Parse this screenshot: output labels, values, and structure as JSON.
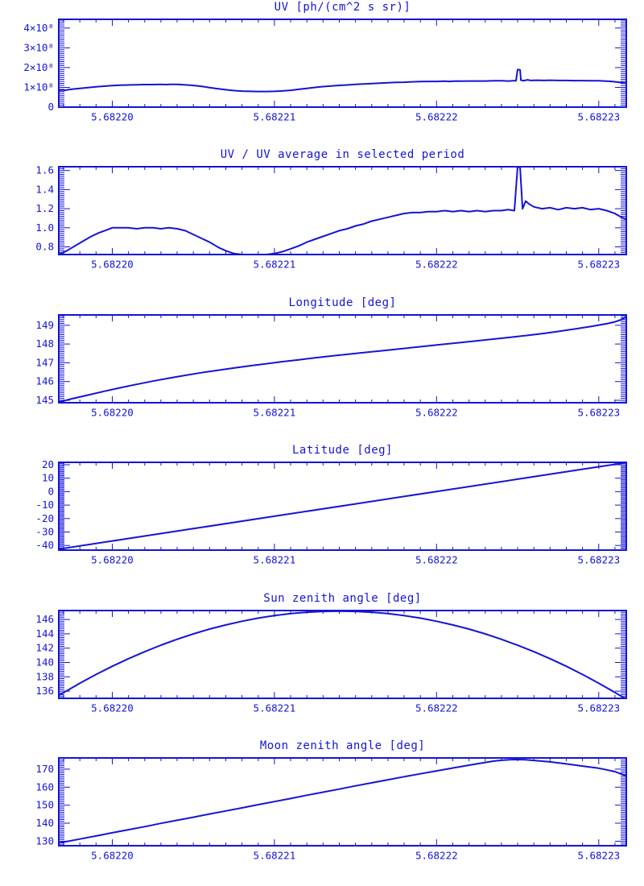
{
  "page": {
    "background": "#ffffff"
  },
  "colors": {
    "plot_blue": "#1414d6"
  },
  "axis": {
    "x_base": 5.6822,
    "x_encoding": "x_value = x_base + dx * 1e-5",
    "x_min_dx": -0.33,
    "x_max_dx": 3.17,
    "x_major_dx": [
      0,
      1,
      2,
      3
    ],
    "x_tick_labels": [
      "5.68220",
      "5.68221",
      "5.68222",
      "5.68223"
    ],
    "x_minor_step_dx": 0.1
  },
  "chart_data": [
    {
      "type": "line",
      "title": "UV [ph/(cm^2 s sr)]",
      "y_unit": "1e8 ph/(cm^2 s sr)",
      "ylim": [
        0,
        4.44
      ],
      "y_major_ticks": [
        0,
        1,
        2,
        3,
        4
      ],
      "y_tick_labels": [
        "0",
        "1×10⁸",
        "2×10⁸",
        "3×10⁸",
        "4×10⁸"
      ],
      "y_minor_step": 0.1,
      "points": [
        [
          -0.33,
          0.84
        ],
        [
          -0.31,
          0.88
        ],
        [
          -0.29,
          0.85
        ],
        [
          -0.27,
          0.89
        ],
        [
          -0.25,
          0.91
        ],
        [
          -0.2,
          0.95
        ],
        [
          -0.15,
          0.99
        ],
        [
          -0.1,
          1.03
        ],
        [
          -0.05,
          1.06
        ],
        [
          0.0,
          1.09
        ],
        [
          0.05,
          1.11
        ],
        [
          0.1,
          1.12
        ],
        [
          0.15,
          1.13
        ],
        [
          0.2,
          1.14
        ],
        [
          0.25,
          1.14
        ],
        [
          0.3,
          1.15
        ],
        [
          0.33,
          1.14
        ],
        [
          0.36,
          1.15
        ],
        [
          0.4,
          1.15
        ],
        [
          0.44,
          1.13
        ],
        [
          0.48,
          1.11
        ],
        [
          0.52,
          1.08
        ],
        [
          0.56,
          1.04
        ],
        [
          0.6,
          0.99
        ],
        [
          0.64,
          0.94
        ],
        [
          0.68,
          0.9
        ],
        [
          0.72,
          0.86
        ],
        [
          0.76,
          0.83
        ],
        [
          0.8,
          0.81
        ],
        [
          0.85,
          0.8
        ],
        [
          0.9,
          0.79
        ],
        [
          0.95,
          0.79
        ],
        [
          1.0,
          0.8
        ],
        [
          1.05,
          0.82
        ],
        [
          1.1,
          0.85
        ],
        [
          1.15,
          0.9
        ],
        [
          1.2,
          0.95
        ],
        [
          1.25,
          1.0
        ],
        [
          1.3,
          1.04
        ],
        [
          1.35,
          1.07
        ],
        [
          1.4,
          1.1
        ],
        [
          1.45,
          1.12
        ],
        [
          1.5,
          1.15
        ],
        [
          1.55,
          1.17
        ],
        [
          1.6,
          1.19
        ],
        [
          1.65,
          1.21
        ],
        [
          1.7,
          1.23
        ],
        [
          1.75,
          1.25
        ],
        [
          1.8,
          1.26
        ],
        [
          1.85,
          1.28
        ],
        [
          1.9,
          1.29
        ],
        [
          1.95,
          1.3
        ],
        [
          2.0,
          1.3
        ],
        [
          2.05,
          1.31
        ],
        [
          2.08,
          1.3
        ],
        [
          2.12,
          1.32
        ],
        [
          2.16,
          1.31
        ],
        [
          2.2,
          1.32
        ],
        [
          2.25,
          1.32
        ],
        [
          2.3,
          1.32
        ],
        [
          2.35,
          1.33
        ],
        [
          2.4,
          1.33
        ],
        [
          2.44,
          1.32
        ],
        [
          2.47,
          1.33
        ],
        [
          2.49,
          1.33
        ],
        [
          2.5,
          1.9
        ],
        [
          2.515,
          1.88
        ],
        [
          2.52,
          1.36
        ],
        [
          2.54,
          1.34
        ],
        [
          2.56,
          1.38
        ],
        [
          2.58,
          1.35
        ],
        [
          2.62,
          1.36
        ],
        [
          2.66,
          1.35
        ],
        [
          2.7,
          1.36
        ],
        [
          2.75,
          1.35
        ],
        [
          2.8,
          1.35
        ],
        [
          2.85,
          1.34
        ],
        [
          2.9,
          1.34
        ],
        [
          2.95,
          1.33
        ],
        [
          3.0,
          1.33
        ],
        [
          3.04,
          1.32
        ],
        [
          3.08,
          1.3
        ],
        [
          3.11,
          1.27
        ],
        [
          3.14,
          1.24
        ],
        [
          3.17,
          1.21
        ]
      ]
    },
    {
      "type": "line",
      "title": "UV / UV average in selected period",
      "ylim": [
        0.72,
        1.64
      ],
      "y_major_ticks": [
        0.8,
        1.0,
        1.2,
        1.4,
        1.6
      ],
      "y_tick_labels": [
        "0.8",
        "1.0",
        "1.2",
        "1.4",
        "1.6"
      ],
      "y_minor_step": 0.02,
      "points": [
        [
          -0.33,
          0.72
        ],
        [
          -0.28,
          0.76
        ],
        [
          -0.23,
          0.81
        ],
        [
          -0.18,
          0.86
        ],
        [
          -0.13,
          0.91
        ],
        [
          -0.08,
          0.95
        ],
        [
          -0.03,
          0.98
        ],
        [
          0.0,
          1.0
        ],
        [
          0.05,
          1.0
        ],
        [
          0.1,
          1.0
        ],
        [
          0.15,
          0.99
        ],
        [
          0.2,
          1.0
        ],
        [
          0.25,
          1.0
        ],
        [
          0.3,
          0.99
        ],
        [
          0.35,
          1.0
        ],
        [
          0.4,
          0.99
        ],
        [
          0.45,
          0.97
        ],
        [
          0.5,
          0.93
        ],
        [
          0.55,
          0.89
        ],
        [
          0.6,
          0.85
        ],
        [
          0.63,
          0.82
        ],
        [
          0.66,
          0.79
        ],
        [
          0.7,
          0.76
        ],
        [
          0.75,
          0.73
        ],
        [
          0.8,
          0.72
        ],
        [
          0.85,
          0.72
        ],
        [
          0.9,
          0.72
        ],
        [
          0.95,
          0.72
        ],
        [
          1.0,
          0.73
        ],
        [
          1.05,
          0.75
        ],
        [
          1.1,
          0.78
        ],
        [
          1.15,
          0.81
        ],
        [
          1.2,
          0.85
        ],
        [
          1.25,
          0.88
        ],
        [
          1.3,
          0.91
        ],
        [
          1.35,
          0.94
        ],
        [
          1.4,
          0.97
        ],
        [
          1.45,
          0.99
        ],
        [
          1.5,
          1.02
        ],
        [
          1.55,
          1.04
        ],
        [
          1.6,
          1.07
        ],
        [
          1.65,
          1.09
        ],
        [
          1.7,
          1.11
        ],
        [
          1.75,
          1.13
        ],
        [
          1.8,
          1.15
        ],
        [
          1.85,
          1.16
        ],
        [
          1.9,
          1.16
        ],
        [
          1.95,
          1.17
        ],
        [
          2.0,
          1.17
        ],
        [
          2.05,
          1.18
        ],
        [
          2.1,
          1.17
        ],
        [
          2.15,
          1.18
        ],
        [
          2.2,
          1.17
        ],
        [
          2.25,
          1.18
        ],
        [
          2.3,
          1.17
        ],
        [
          2.35,
          1.18
        ],
        [
          2.4,
          1.18
        ],
        [
          2.44,
          1.19
        ],
        [
          2.48,
          1.18
        ],
        [
          2.5,
          1.64
        ],
        [
          2.515,
          1.63
        ],
        [
          2.53,
          1.2
        ],
        [
          2.55,
          1.28
        ],
        [
          2.57,
          1.25
        ],
        [
          2.6,
          1.22
        ],
        [
          2.65,
          1.2
        ],
        [
          2.7,
          1.21
        ],
        [
          2.75,
          1.19
        ],
        [
          2.8,
          1.21
        ],
        [
          2.85,
          1.2
        ],
        [
          2.9,
          1.21
        ],
        [
          2.95,
          1.19
        ],
        [
          3.0,
          1.2
        ],
        [
          3.05,
          1.18
        ],
        [
          3.1,
          1.15
        ],
        [
          3.14,
          1.11
        ],
        [
          3.17,
          1.09
        ]
      ]
    },
    {
      "type": "line",
      "title": "Longitude [deg]",
      "ylim": [
        144.87,
        149.55
      ],
      "y_major_ticks": [
        145,
        146,
        147,
        148,
        149
      ],
      "y_tick_labels": [
        "145",
        "146",
        "147",
        "148",
        "149"
      ],
      "y_minor_step": 0.1,
      "points": [
        [
          -0.33,
          144.9
        ],
        [
          -0.25,
          145.08
        ],
        [
          -0.15,
          145.28
        ],
        [
          -0.05,
          145.48
        ],
        [
          0.05,
          145.67
        ],
        [
          0.15,
          145.85
        ],
        [
          0.25,
          146.02
        ],
        [
          0.35,
          146.18
        ],
        [
          0.45,
          146.33
        ],
        [
          0.55,
          146.47
        ],
        [
          0.65,
          146.6
        ],
        [
          0.75,
          146.72
        ],
        [
          0.85,
          146.84
        ],
        [
          0.95,
          146.95
        ],
        [
          1.05,
          147.06
        ],
        [
          1.15,
          147.16
        ],
        [
          1.25,
          147.26
        ],
        [
          1.35,
          147.36
        ],
        [
          1.45,
          147.45
        ],
        [
          1.55,
          147.54
        ],
        [
          1.65,
          147.63
        ],
        [
          1.75,
          147.72
        ],
        [
          1.85,
          147.81
        ],
        [
          1.95,
          147.9
        ],
        [
          2.05,
          147.99
        ],
        [
          2.15,
          148.08
        ],
        [
          2.25,
          148.17
        ],
        [
          2.35,
          148.26
        ],
        [
          2.45,
          148.35
        ],
        [
          2.55,
          148.45
        ],
        [
          2.65,
          148.55
        ],
        [
          2.75,
          148.67
        ],
        [
          2.85,
          148.8
        ],
        [
          2.95,
          148.93
        ],
        [
          3.05,
          149.08
        ],
        [
          3.1,
          149.18
        ],
        [
          3.14,
          149.3
        ],
        [
          3.17,
          149.45
        ]
      ]
    },
    {
      "type": "line",
      "title": "Latitude [deg]",
      "ylim": [
        -43.5,
        21.8
      ],
      "y_major_ticks": [
        -40,
        -30,
        -20,
        -10,
        0,
        10,
        20
      ],
      "y_tick_labels": [
        "-40",
        "-30",
        "-20",
        "-10",
        "0",
        "10",
        "20"
      ],
      "y_minor_step": 1,
      "points": [
        [
          -0.33,
          -42.8
        ],
        [
          0.0,
          -36.7
        ],
        [
          0.5,
          -27.5
        ],
        [
          1.0,
          -18.3
        ],
        [
          1.5,
          -9.1
        ],
        [
          2.0,
          0.1
        ],
        [
          2.5,
          9.3
        ],
        [
          3.0,
          18.5
        ],
        [
          3.17,
          21.6
        ]
      ]
    },
    {
      "type": "line",
      "title": "Sun zenith angle [deg]",
      "ylim": [
        135.0,
        147.25
      ],
      "y_major_ticks": [
        136,
        138,
        140,
        142,
        144,
        146
      ],
      "y_tick_labels": [
        "136",
        "138",
        "140",
        "142",
        "144",
        "146"
      ],
      "y_minor_step": 0.25,
      "points": [
        [
          -0.33,
          135.41
        ],
        [
          -0.2,
          137.11
        ],
        [
          -0.1,
          138.33
        ],
        [
          0.0,
          139.47
        ],
        [
          0.1,
          140.53
        ],
        [
          0.2,
          141.51
        ],
        [
          0.3,
          142.42
        ],
        [
          0.4,
          143.24
        ],
        [
          0.5,
          143.99
        ],
        [
          0.6,
          144.66
        ],
        [
          0.7,
          145.24
        ],
        [
          0.8,
          145.76
        ],
        [
          0.9,
          146.19
        ],
        [
          1.0,
          146.54
        ],
        [
          1.1,
          146.82
        ],
        [
          1.2,
          147.01
        ],
        [
          1.3,
          147.13
        ],
        [
          1.4,
          147.17
        ],
        [
          1.5,
          147.13
        ],
        [
          1.6,
          147.01
        ],
        [
          1.7,
          146.82
        ],
        [
          1.8,
          146.54
        ],
        [
          1.9,
          146.19
        ],
        [
          2.0,
          145.76
        ],
        [
          2.1,
          145.24
        ],
        [
          2.2,
          144.66
        ],
        [
          2.3,
          143.99
        ],
        [
          2.4,
          143.24
        ],
        [
          2.5,
          142.41
        ],
        [
          2.6,
          141.51
        ],
        [
          2.7,
          140.53
        ],
        [
          2.8,
          139.47
        ],
        [
          2.9,
          138.33
        ],
        [
          3.0,
          137.11
        ],
        [
          3.1,
          135.82
        ],
        [
          3.17,
          134.86
        ]
      ]
    },
    {
      "type": "line",
      "title": "Moon zenith angle [deg]",
      "ylim": [
        127.5,
        176.2
      ],
      "y_major_ticks": [
        130,
        140,
        150,
        160,
        170
      ],
      "y_tick_labels": [
        "130",
        "140",
        "150",
        "160",
        "170"
      ],
      "y_minor_step": 1,
      "points": [
        [
          -0.33,
          129.0
        ],
        [
          -0.2,
          131.2
        ],
        [
          -0.1,
          132.9
        ],
        [
          0.0,
          134.7
        ],
        [
          0.1,
          136.4
        ],
        [
          0.2,
          138.1
        ],
        [
          0.3,
          139.9
        ],
        [
          0.4,
          141.6
        ],
        [
          0.5,
          143.3
        ],
        [
          0.6,
          145.1
        ],
        [
          0.7,
          146.8
        ],
        [
          0.8,
          148.5
        ],
        [
          0.9,
          150.3
        ],
        [
          1.0,
          152.0
        ],
        [
          1.1,
          153.7
        ],
        [
          1.2,
          155.5
        ],
        [
          1.3,
          157.2
        ],
        [
          1.4,
          158.9
        ],
        [
          1.5,
          160.7
        ],
        [
          1.6,
          162.4
        ],
        [
          1.7,
          164.1
        ],
        [
          1.8,
          165.8
        ],
        [
          1.9,
          167.4
        ],
        [
          2.0,
          169.0
        ],
        [
          2.1,
          170.6
        ],
        [
          2.2,
          172.2
        ],
        [
          2.3,
          173.7
        ],
        [
          2.35,
          174.4
        ],
        [
          2.4,
          174.9
        ],
        [
          2.45,
          175.2
        ],
        [
          2.5,
          175.3
        ],
        [
          2.55,
          175.2
        ],
        [
          2.6,
          174.8
        ],
        [
          2.7,
          174.0
        ],
        [
          2.8,
          172.9
        ],
        [
          2.9,
          171.7
        ],
        [
          3.0,
          170.5
        ],
        [
          3.05,
          169.6
        ],
        [
          3.1,
          168.6
        ],
        [
          3.14,
          167.2
        ],
        [
          3.17,
          166.2
        ]
      ]
    }
  ]
}
